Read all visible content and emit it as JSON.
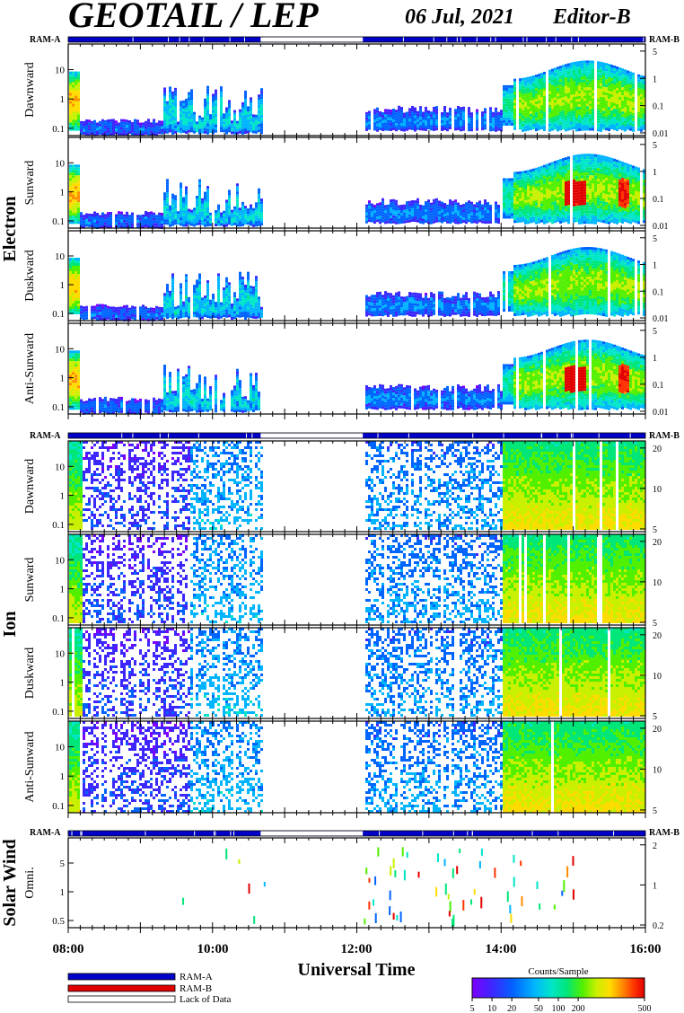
{
  "header": {
    "title": "GEOTAIL / LEP",
    "date": "06 Jul, 2021",
    "editor": "Editor-B"
  },
  "colors": {
    "ram_a": "#0000c8",
    "ram_b": "#e00000",
    "lack": "#ffffff",
    "frame": "#000000",
    "colormap": [
      "#7b00ff",
      "#3c28ff",
      "#0064ff",
      "#00b4ff",
      "#00e6c8",
      "#00e678",
      "#50f000",
      "#c8f000",
      "#ffdc00",
      "#ff8c00",
      "#ff3200",
      "#e10000"
    ]
  },
  "group_labels": {
    "electron": "Electron",
    "ion": "Ion",
    "solar_wind": "Solar Wind"
  },
  "ram_labels": {
    "a": "RAM-A",
    "b": "RAM-B"
  },
  "legend": {
    "ram_a": "RAM-A",
    "ram_b": "RAM-B",
    "lack": "Lack of Data"
  },
  "colorbar": {
    "title": "Counts/Sample",
    "ticks": [
      "5",
      "10",
      "20",
      "50",
      "100",
      "200",
      "500"
    ]
  },
  "chart_data": {
    "type": "heatmap",
    "xlabel": "Universal Time",
    "x_ticks": [
      "08:00",
      "10:00",
      "12:00",
      "14:00",
      "16:00"
    ],
    "x_range": [
      "08:00",
      "16:00"
    ],
    "data_gaps": [
      [
        "10:40",
        "12:05"
      ]
    ],
    "panels": [
      {
        "group": "Electron",
        "label": "Dawnward",
        "left_ticks": [
          "10",
          "1",
          "0.1"
        ],
        "right_ticks": [
          "5",
          "1",
          "0.1",
          "0.01"
        ]
      },
      {
        "group": "Electron",
        "label": "Sunward",
        "left_ticks": [
          "10",
          "1",
          "0.1"
        ],
        "right_ticks": [
          "5",
          "1",
          "0.1",
          "0.01"
        ]
      },
      {
        "group": "Electron",
        "label": "Duskward",
        "left_ticks": [
          "10",
          "1",
          "0.1"
        ],
        "right_ticks": [
          "5",
          "1",
          "0.1",
          "0.01"
        ]
      },
      {
        "group": "Electron",
        "label": "Anti-Sunward",
        "left_ticks": [
          "10",
          "1",
          "0.1"
        ],
        "right_ticks": [
          "5",
          "1",
          "0.1",
          "0.01"
        ]
      },
      {
        "group": "Ion",
        "label": "Dawnward",
        "left_ticks": [
          "10",
          "1",
          "0.1"
        ],
        "right_ticks": [
          "20",
          "10",
          "5"
        ]
      },
      {
        "group": "Ion",
        "label": "Sunward",
        "left_ticks": [
          "10",
          "1",
          "0.1"
        ],
        "right_ticks": [
          "20",
          "10",
          "5"
        ]
      },
      {
        "group": "Ion",
        "label": "Duskward",
        "left_ticks": [
          "10",
          "1",
          "0.1"
        ],
        "right_ticks": [
          "20",
          "10",
          "5"
        ]
      },
      {
        "group": "Ion",
        "label": "Anti-Sunward",
        "left_ticks": [
          "10",
          "1",
          "0.1"
        ],
        "right_ticks": [
          "20",
          "10",
          "5"
        ]
      },
      {
        "group": "Solar Wind",
        "label": "Omni.",
        "left_ticks": [
          "5",
          "1",
          "0.5"
        ],
        "right_ticks": [
          "2",
          "1",
          "0.2"
        ]
      }
    ]
  }
}
